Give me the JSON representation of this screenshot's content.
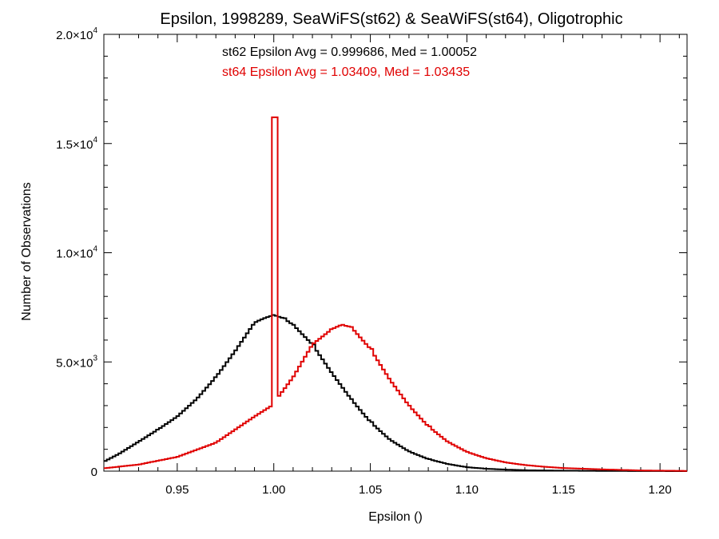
{
  "chart_data": {
    "type": "line",
    "title": "Epsilon, 1998289, SeaWiFS(st62) & SeaWiFS(st64), Oligotrophic",
    "xlabel": "Epsilon ()",
    "ylabel": "Number of Observations",
    "xlim": [
      0.912,
      1.214
    ],
    "ylim": [
      0,
      20000
    ],
    "xticks": [
      {
        "v": 0.95,
        "label": "0.95"
      },
      {
        "v": 1.0,
        "label": "1.00"
      },
      {
        "v": 1.05,
        "label": "1.05"
      },
      {
        "v": 1.1,
        "label": "1.10"
      },
      {
        "v": 1.15,
        "label": "1.15"
      },
      {
        "v": 1.2,
        "label": "1.20"
      }
    ],
    "yticks": [
      {
        "v": 0,
        "mant": "0",
        "exp": ""
      },
      {
        "v": 5000,
        "mant": "5.0×10",
        "exp": "3"
      },
      {
        "v": 10000,
        "mant": "1.0×10",
        "exp": "4"
      },
      {
        "v": 15000,
        "mant": "1.5×10",
        "exp": "4"
      },
      {
        "v": 20000,
        "mant": "2.0×10",
        "exp": "4"
      }
    ],
    "annotations": [
      {
        "text": "st62 Epsilon Avg = 0.999686, Med = 1.00052",
        "color": "#000000"
      },
      {
        "text": "st64 Epsilon Avg = 1.03409, Med = 1.03435",
        "color": "#e00000"
      }
    ],
    "grid": false,
    "step": true,
    "series": [
      {
        "name": "st62",
        "color": "#000000",
        "x": [
          0.912,
          0.92,
          0.93,
          0.94,
          0.95,
          0.96,
          0.97,
          0.98,
          0.99,
          0.995,
          1.0,
          1.005,
          1.01,
          1.02,
          1.03,
          1.04,
          1.05,
          1.06,
          1.07,
          1.08,
          1.09,
          1.1,
          1.11,
          1.12,
          1.13,
          1.15,
          1.17,
          1.214
        ],
        "y": [
          430,
          800,
          1350,
          1900,
          2500,
          3300,
          4300,
          5500,
          6800,
          7000,
          7150,
          7000,
          6700,
          5800,
          4500,
          3300,
          2250,
          1450,
          900,
          550,
          330,
          180,
          110,
          70,
          40,
          20,
          10,
          0
        ]
      },
      {
        "name": "st64",
        "color": "#e00000",
        "x": [
          0.912,
          0.93,
          0.95,
          0.97,
          0.98,
          0.99,
          0.999,
          0.9995,
          1.0005,
          1.0015,
          1.01,
          1.02,
          1.03,
          1.035,
          1.04,
          1.05,
          1.06,
          1.07,
          1.08,
          1.09,
          1.1,
          1.11,
          1.12,
          1.13,
          1.14,
          1.15,
          1.17,
          1.19,
          1.214
        ],
        "y": [
          130,
          300,
          650,
          1300,
          1900,
          2500,
          3000,
          16200,
          16200,
          3300,
          4300,
          5800,
          6500,
          6700,
          6600,
          5600,
          4200,
          3000,
          2050,
          1350,
          880,
          590,
          400,
          280,
          200,
          140,
          80,
          30,
          10
        ]
      }
    ]
  }
}
